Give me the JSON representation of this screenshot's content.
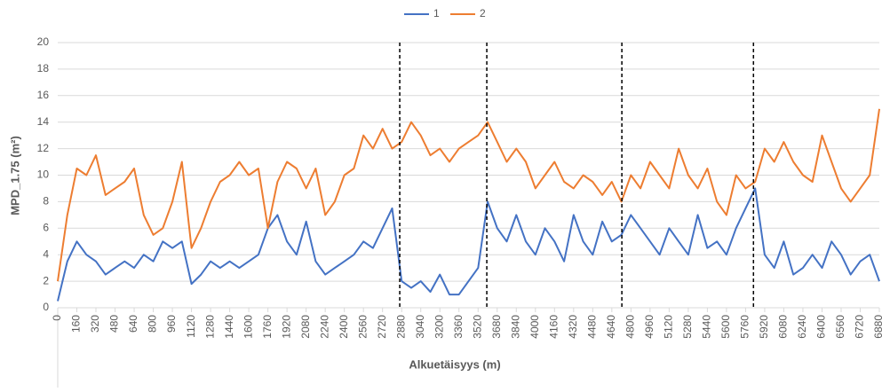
{
  "chart_data": {
    "type": "line",
    "x_label": "Alkuetäisyys (m)",
    "y_label": "MPD_1.75 (m²)",
    "legend": "top",
    "grid": true,
    "xlim": [
      0,
      6880
    ],
    "ylim": [
      0,
      20
    ],
    "yticks": [
      0,
      2,
      4,
      6,
      8,
      10,
      12,
      14,
      16,
      18,
      20
    ],
    "xticks": [
      0,
      160,
      320,
      480,
      640,
      800,
      960,
      1120,
      1280,
      1440,
      1600,
      1760,
      1920,
      2080,
      2240,
      2400,
      2560,
      2720,
      2880,
      3040,
      3200,
      3360,
      3520,
      3680,
      3840,
      4000,
      4160,
      4320,
      4480,
      4640,
      4800,
      4960,
      5120,
      5280,
      5440,
      5600,
      5760,
      5920,
      6080,
      6240,
      6400,
      6560,
      6720,
      6880
    ],
    "vlines": [
      2864,
      3593,
      4724,
      5826
    ],
    "x": [
      0,
      80,
      160,
      240,
      320,
      400,
      480,
      560,
      640,
      720,
      800,
      880,
      960,
      1040,
      1120,
      1200,
      1280,
      1360,
      1440,
      1520,
      1600,
      1680,
      1760,
      1840,
      1920,
      2000,
      2080,
      2160,
      2240,
      2320,
      2400,
      2480,
      2560,
      2640,
      2720,
      2800,
      2880,
      2960,
      3040,
      3120,
      3200,
      3280,
      3360,
      3440,
      3520,
      3600,
      3680,
      3760,
      3840,
      3920,
      4000,
      4080,
      4160,
      4240,
      4320,
      4400,
      4480,
      4560,
      4640,
      4720,
      4800,
      4880,
      4960,
      5040,
      5120,
      5200,
      5280,
      5360,
      5440,
      5520,
      5600,
      5680,
      5760,
      5840,
      5920,
      6000,
      6080,
      6160,
      6240,
      6320,
      6400,
      6480,
      6560,
      6640,
      6720,
      6800,
      6880
    ],
    "series": [
      {
        "name": "1",
        "color": "#4472c4",
        "values": [
          0.5,
          3.5,
          5,
          4,
          3.5,
          2.5,
          3,
          3.5,
          3,
          4,
          3.5,
          5,
          4.5,
          5,
          1.8,
          2.5,
          3.5,
          3,
          3.5,
          3,
          3.5,
          4,
          6,
          7,
          5,
          4,
          6.5,
          3.5,
          2.5,
          3,
          3.5,
          4,
          5,
          4.5,
          6,
          7.5,
          2,
          1.5,
          2,
          1.2,
          2.5,
          1,
          1,
          2,
          3,
          8,
          6,
          5,
          7,
          5,
          4,
          6,
          5,
          3.5,
          7,
          5,
          4,
          6.5,
          5,
          5.5,
          7,
          6,
          5,
          4,
          6,
          5,
          4,
          7,
          4.5,
          5,
          4,
          6,
          7.5,
          9,
          4,
          3,
          5,
          2.5,
          3,
          4,
          3,
          5,
          4,
          2.5,
          3.5,
          4,
          2
        ]
      },
      {
        "name": "2",
        "color": "#ed7d31",
        "values": [
          2,
          7,
          10.5,
          10,
          11.5,
          8.5,
          9,
          9.5,
          10.5,
          7,
          5.5,
          6,
          8,
          11,
          4.5,
          6,
          8,
          9.5,
          10,
          11,
          10,
          10.5,
          6,
          9.5,
          11,
          10.5,
          9,
          10.5,
          7,
          8,
          10,
          10.5,
          13,
          12,
          13.5,
          12,
          12.5,
          14,
          13,
          11.5,
          12,
          11,
          12,
          12.5,
          13,
          14,
          12.5,
          11,
          12,
          11,
          9,
          10,
          11,
          9.5,
          9,
          10,
          9.5,
          8.5,
          9.5,
          8,
          10,
          9,
          11,
          10,
          9,
          12,
          10,
          9,
          10.5,
          8,
          7,
          10,
          9,
          9.5,
          12,
          11,
          12.5,
          11,
          10,
          9.5,
          13,
          11,
          9,
          8,
          9,
          10,
          15
        ]
      }
    ]
  }
}
